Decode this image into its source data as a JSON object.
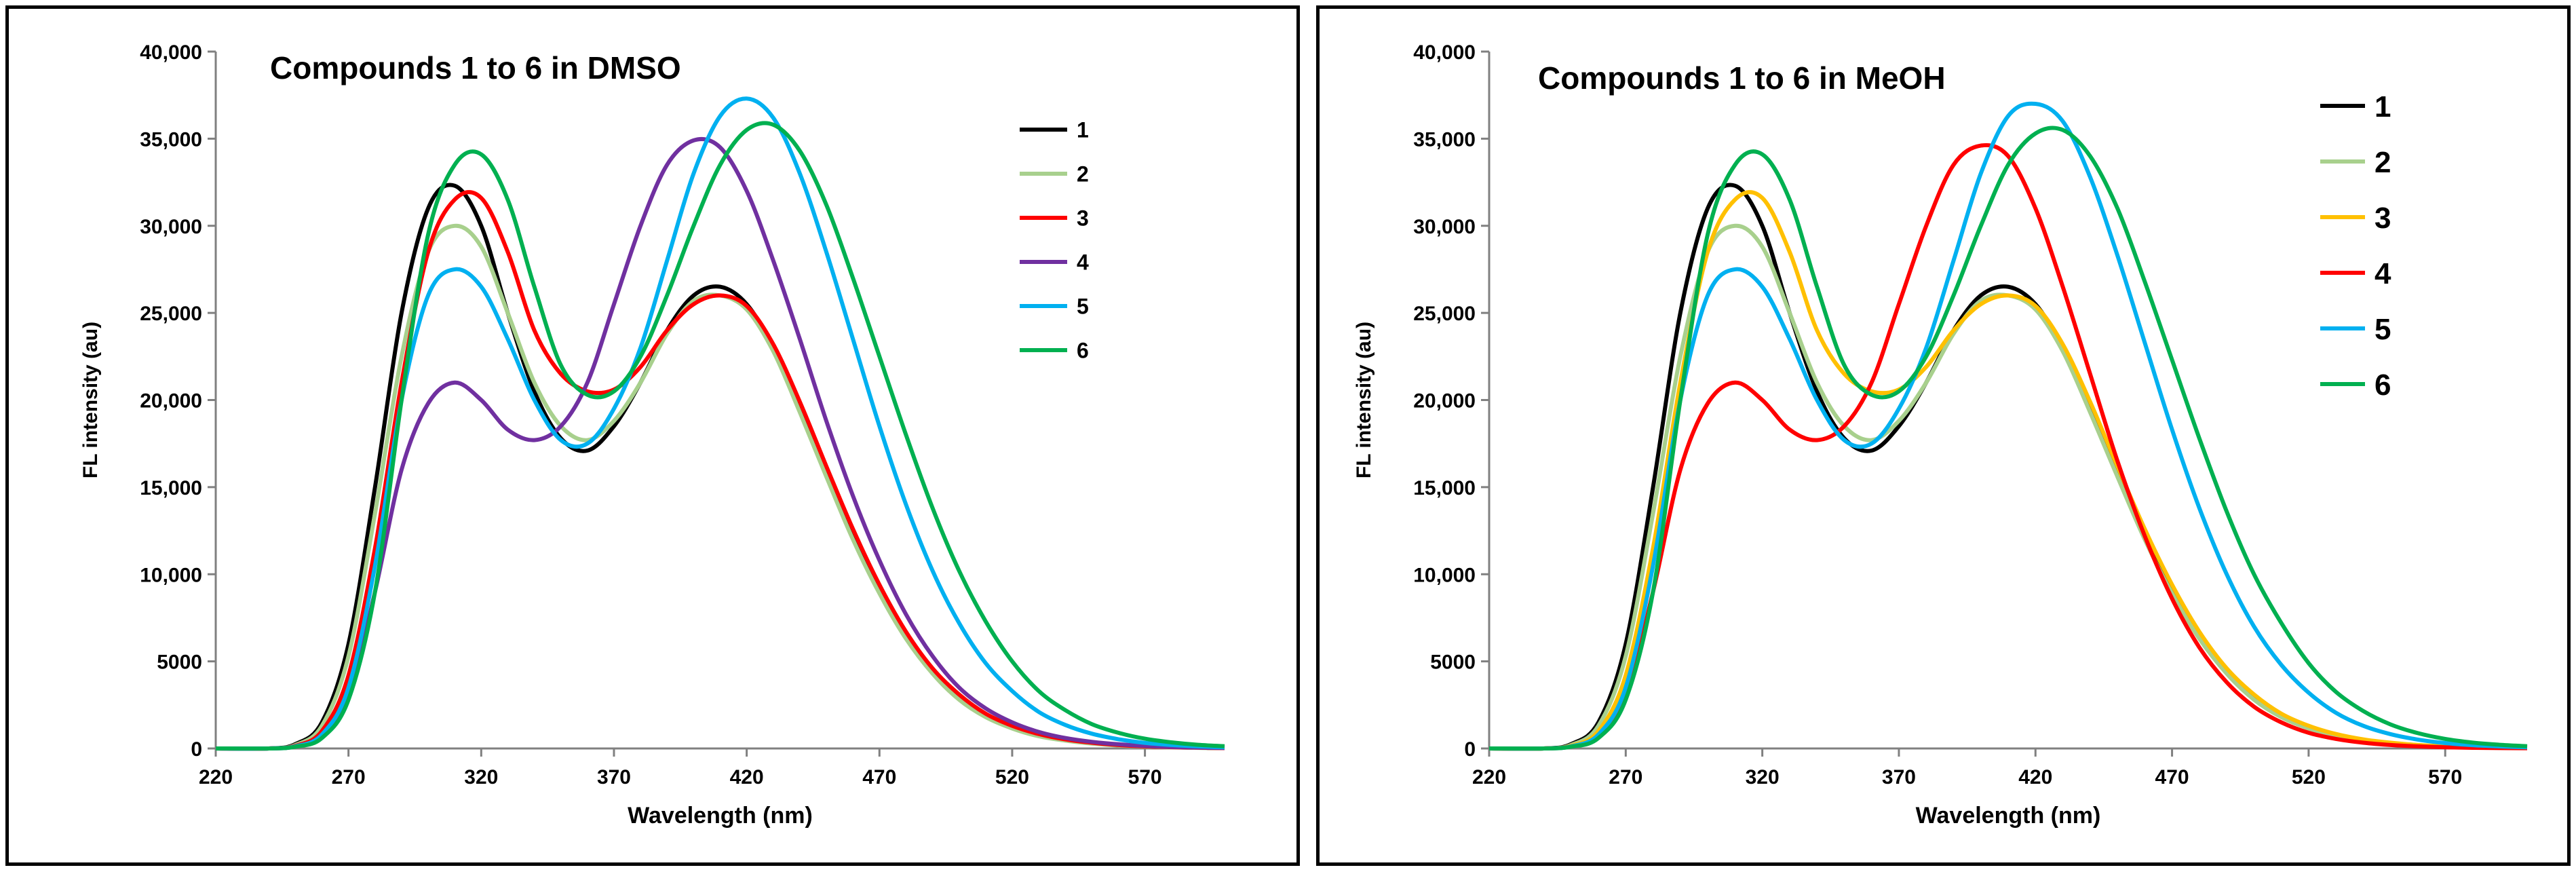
{
  "chart_data": [
    {
      "type": "line",
      "title": "Compounds 1 to 6 in DMSO",
      "xlabel": "Wavelength (nm)",
      "ylabel": "FL intensity (au)",
      "xlim": [
        220,
        600
      ],
      "ylim": [
        0,
        40000
      ],
      "x_ticks": [
        "220",
        "270",
        "320",
        "370",
        "420",
        "470",
        "520",
        "570"
      ],
      "y_ticks": [
        "0",
        "5000",
        "10,000",
        "15,000",
        "20,000",
        "25,000",
        "30,000",
        "35,000",
        "40,000"
      ],
      "legend_position": "top-right",
      "grid": false,
      "x": [
        220,
        240,
        250,
        260,
        270,
        280,
        290,
        300,
        310,
        320,
        330,
        340,
        350,
        360,
        370,
        380,
        390,
        400,
        410,
        420,
        430,
        440,
        450,
        460,
        470,
        480,
        490,
        500,
        510,
        520,
        530,
        540,
        550,
        560,
        570,
        580,
        590,
        600
      ],
      "series": [
        {
          "name": "1",
          "color": "#000000",
          "values": [
            0,
            0,
            250,
            1500,
            6000,
            15000,
            25000,
            31000,
            32300,
            30000,
            25000,
            20500,
            17800,
            17100,
            18500,
            21000,
            24000,
            26000,
            26500,
            25500,
            23000,
            19500,
            15800,
            12200,
            9000,
            6400,
            4400,
            2900,
            1900,
            1200,
            750,
            480,
            300,
            190,
            110,
            70,
            40,
            20
          ]
        },
        {
          "name": "2",
          "color": "#a8d08d",
          "values": [
            0,
            0,
            200,
            1300,
            5300,
            13500,
            22500,
            28500,
            30000,
            28800,
            25000,
            21000,
            18500,
            17700,
            18800,
            21000,
            23800,
            25700,
            26000,
            25200,
            22800,
            19300,
            15600,
            12000,
            8900,
            6300,
            4300,
            2800,
            1800,
            1150,
            700,
            450,
            280,
            170,
            100,
            60,
            35,
            20
          ]
        },
        {
          "name": "3",
          "color": "#ff0000",
          "values": [
            0,
            0,
            150,
            1000,
            4200,
            11500,
            21000,
            28500,
            31500,
            31600,
            28500,
            24000,
            21500,
            20500,
            20600,
            21900,
            24000,
            25500,
            26000,
            25400,
            23200,
            19900,
            16200,
            12600,
            9400,
            6700,
            4600,
            3100,
            2000,
            1300,
            830,
            520,
            330,
            200,
            120,
            75,
            45,
            25
          ]
        },
        {
          "name": "4",
          "color": "#7030a0",
          "values": [
            0,
            0,
            120,
            700,
            3000,
            9000,
            16000,
            19800,
            21000,
            20000,
            18300,
            17700,
            18500,
            21000,
            25500,
            30000,
            33500,
            34900,
            34500,
            32000,
            28000,
            23500,
            18800,
            14500,
            10800,
            7700,
            5300,
            3500,
            2300,
            1500,
            950,
            600,
            380,
            240,
            150,
            90,
            55,
            30
          ]
        },
        {
          "name": "5",
          "color": "#00b0f0",
          "values": [
            0,
            0,
            120,
            800,
            3500,
            10500,
            20000,
            26000,
            27500,
            26500,
            23500,
            20000,
            17700,
            17500,
            19500,
            23000,
            28000,
            33000,
            36300,
            37300,
            36200,
            33000,
            28500,
            23500,
            18500,
            14000,
            10200,
            7200,
            4900,
            3300,
            2100,
            1350,
            850,
            530,
            320,
            200,
            120,
            70
          ]
        },
        {
          "name": "6",
          "color": "#00b050",
          "values": [
            0,
            0,
            100,
            600,
            2800,
            9000,
            20000,
            29500,
            33500,
            34100,
            31500,
            26500,
            22000,
            20300,
            20500,
            22500,
            26000,
            30000,
            33500,
            35500,
            35800,
            34300,
            31200,
            27000,
            22500,
            18000,
            13800,
            10200,
            7300,
            5000,
            3300,
            2200,
            1400,
            900,
            560,
            350,
            210,
            130
          ]
        }
      ]
    },
    {
      "type": "line",
      "title": "Compounds 1 to 6 in MeOH",
      "xlabel": "Wavelength (nm)",
      "ylabel": "FL intensity (au)",
      "xlim": [
        220,
        600
      ],
      "ylim": [
        0,
        40000
      ],
      "x_ticks": [
        "220",
        "270",
        "320",
        "370",
        "420",
        "470",
        "520",
        "570"
      ],
      "y_ticks": [
        "0",
        "5000",
        "10,000",
        "15,000",
        "20,000",
        "25,000",
        "30,000",
        "35,000",
        "40,000"
      ],
      "legend_position": "top-right",
      "grid": false,
      "x": [
        220,
        240,
        250,
        260,
        270,
        280,
        290,
        300,
        310,
        320,
        330,
        340,
        350,
        360,
        370,
        380,
        390,
        400,
        410,
        420,
        430,
        440,
        450,
        460,
        470,
        480,
        490,
        500,
        510,
        520,
        530,
        540,
        550,
        560,
        570,
        580,
        590,
        600
      ],
      "series": [
        {
          "name": "1",
          "color": "#000000",
          "values": [
            0,
            0,
            250,
            1500,
            6000,
            15000,
            25000,
            31000,
            32300,
            30000,
            25000,
            20500,
            17800,
            17100,
            18500,
            21000,
            24000,
            26000,
            26500,
            25500,
            23000,
            19500,
            15800,
            12200,
            9000,
            6400,
            4400,
            2900,
            1900,
            1200,
            750,
            480,
            300,
            190,
            110,
            70,
            40,
            20
          ]
        },
        {
          "name": "2",
          "color": "#a8d08d",
          "values": [
            0,
            0,
            200,
            1300,
            5300,
            13500,
            22500,
            28500,
            30000,
            28800,
            25000,
            21000,
            18500,
            17700,
            18800,
            21000,
            23800,
            25700,
            26000,
            25200,
            22800,
            19300,
            15600,
            12000,
            8900,
            6300,
            4300,
            2800,
            1800,
            1150,
            700,
            450,
            280,
            170,
            100,
            60,
            35,
            20
          ]
        },
        {
          "name": "3",
          "color": "#ffc000",
          "values": [
            0,
            0,
            150,
            1000,
            4200,
            11500,
            21000,
            28500,
            31500,
            31600,
            28500,
            24000,
            21500,
            20500,
            20600,
            21900,
            24000,
            25500,
            26000,
            25400,
            23200,
            19900,
            16200,
            12600,
            9400,
            6700,
            4600,
            3100,
            2000,
            1300,
            830,
            520,
            330,
            200,
            120,
            75,
            45,
            25
          ]
        },
        {
          "name": "4",
          "color": "#ff0000",
          "values": [
            0,
            0,
            120,
            700,
            3000,
            9000,
            16000,
            19800,
            21000,
            20000,
            18300,
            17700,
            18500,
            21000,
            25500,
            30000,
            33500,
            34600,
            34000,
            31000,
            26500,
            21500,
            16500,
            12200,
            8600,
            5800,
            3800,
            2400,
            1500,
            900,
            550,
            330,
            200,
            120,
            70,
            40,
            25,
            15
          ]
        },
        {
          "name": "5",
          "color": "#00b0f0",
          "values": [
            0,
            0,
            120,
            800,
            3500,
            10500,
            20000,
            26000,
            27500,
            26500,
            23500,
            20000,
            17700,
            17500,
            19500,
            23000,
            28000,
            33000,
            36300,
            37000,
            36000,
            32800,
            28300,
            23300,
            18300,
            13800,
            10000,
            7000,
            4800,
            3200,
            2050,
            1300,
            820,
            510,
            310,
            190,
            115,
            70
          ]
        },
        {
          "name": "6",
          "color": "#00b050",
          "values": [
            0,
            0,
            100,
            600,
            2800,
            9000,
            20000,
            29500,
            33500,
            34100,
            31500,
            26500,
            22000,
            20300,
            20500,
            22500,
            26000,
            30000,
            33500,
            35300,
            35500,
            34000,
            31000,
            26800,
            22300,
            17800,
            13600,
            10000,
            7200,
            4900,
            3250,
            2150,
            1380,
            880,
            550,
            340,
            210,
            130
          ]
        }
      ]
    }
  ]
}
